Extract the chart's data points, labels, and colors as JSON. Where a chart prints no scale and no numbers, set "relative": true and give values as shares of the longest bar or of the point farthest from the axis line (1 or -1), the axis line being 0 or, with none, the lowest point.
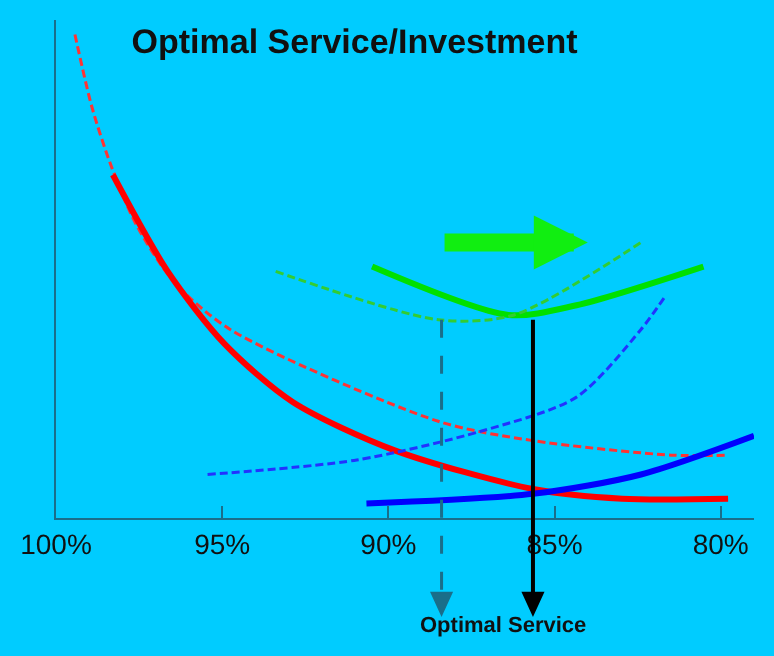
{
  "chart_data": {
    "type": "line",
    "title": "Optimal Service/Investment",
    "relative": true,
    "grid": false,
    "marker": "none",
    "xlim": [
      100,
      79
    ],
    "xticks": [
      {
        "value": 100,
        "label": "100%"
      },
      {
        "value": 95,
        "label": "95%"
      },
      {
        "value": 90,
        "label": "90%"
      },
      {
        "value": 85,
        "label": "85%"
      },
      {
        "value": 80,
        "label": "80%"
      }
    ],
    "series": [
      {
        "color": "#ff3333",
        "line_style": "dashed",
        "x": [
          99.43,
          98.92,
          98.35,
          97.61,
          96.47,
          94.76,
          88.5,
          85.65,
          81.49,
          79.78
        ],
        "values": [
          1.0,
          0.85,
          0.73,
          0.61,
          0.49,
          0.39,
          0.2,
          0.16,
          0.13,
          0.13
        ]
      },
      {
        "color": "#ff0000",
        "line_style": "solid",
        "x": [
          98.29,
          96.64,
          94.93,
          92.88,
          89.81,
          85.65,
          82.97,
          79.78
        ],
        "values": [
          0.71,
          0.51,
          0.36,
          0.24,
          0.14,
          0.06,
          0.04,
          0.04
        ]
      },
      {
        "color": "#0000ff",
        "line_style": "solid",
        "x": [
          90.66,
          85.65,
          82.4,
          79.0
        ],
        "values": [
          0.03,
          0.05,
          0.09,
          0.17
        ]
      },
      {
        "color": "#2233ff",
        "line_style": "dashed",
        "x": [
          95.44,
          90.95,
          87.19,
          84.34,
          82.4,
          81.66
        ],
        "values": [
          0.09,
          0.12,
          0.18,
          0.25,
          0.39,
          0.46
        ]
      },
      {
        "color": "#00e000",
        "line_style": "solid",
        "x": [
          90.49,
          86.39,
          84.34,
          80.52
        ],
        "values": [
          0.52,
          0.42,
          0.44,
          0.52
        ]
      },
      {
        "color": "#33cc33",
        "line_style": "dashed",
        "x": [
          93.39,
          88.5,
          86.22,
          82.4
        ],
        "values": [
          0.51,
          0.41,
          0.42,
          0.57
        ]
      }
    ],
    "ref_lines": [
      {
        "axis": "x",
        "value": 88.4,
        "color": "#1a6e8a",
        "line_style": "dashed"
      },
      {
        "axis": "x",
        "value": 85.65,
        "color": "#000000",
        "line_style": "solid"
      }
    ],
    "annotations": [
      "Optimal Service"
    ]
  }
}
